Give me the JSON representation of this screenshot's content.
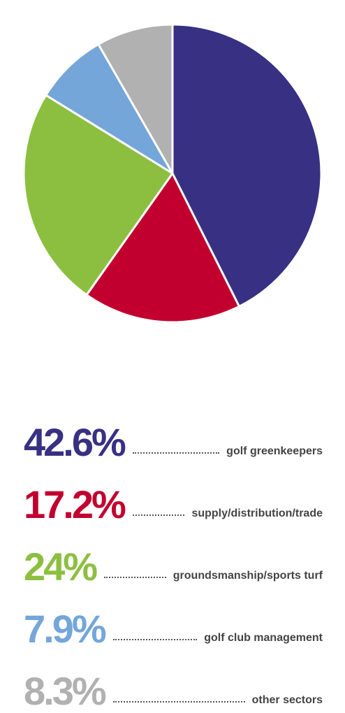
{
  "chart_data": {
    "type": "pie",
    "slices": [
      {
        "value_label": "42.6%",
        "value": 42.6,
        "label": "golf greenkeepers",
        "color": "#383083"
      },
      {
        "value_label": "17.2%",
        "value": 17.2,
        "label": "supply/distribution/trade",
        "color": "#c2002f"
      },
      {
        "value_label": "24%",
        "value": 24.0,
        "label": "groundsmanship/sports turf",
        "color": "#8cbf3f"
      },
      {
        "value_label": "7.9%",
        "value": 7.9,
        "label": "golf club management",
        "color": "#74a6da"
      },
      {
        "value_label": "8.3%",
        "value": 8.3,
        "label": "other sectors",
        "color": "#b1b1b1"
      }
    ],
    "start_angle": "12 o'clock",
    "direction": "clockwise",
    "legend_position": "bottom"
  }
}
